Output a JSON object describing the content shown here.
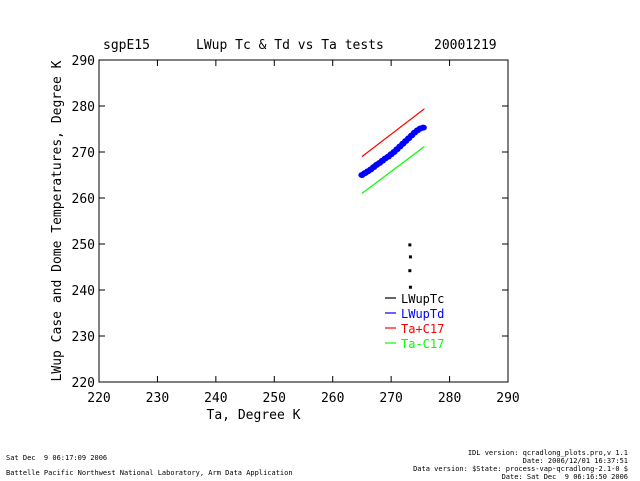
{
  "header": {
    "site": "sgpE15",
    "title": "LWup Tc & Td vs Ta tests",
    "date": "20001219"
  },
  "footer": {
    "left_line1": "Sat Dec  9 06:17:09 2006",
    "left_line2": "Battelle Pacific Northwest National Laboratory, Arm Data Application",
    "right_line1": "IDL version: qcradlong_plots.pro,v 1.1",
    "right_line2": "Date: 2006/12/01 16:37:51",
    "right_line3": "Data version: $State: process-vap-qcradlong-2.1-0 $",
    "right_line4": "Date: Sat Dec  9 06:16:50 2006"
  },
  "chart_data": {
    "type": "scatter",
    "title": "LWup Tc & Td vs Ta tests",
    "xlabel": "Ta, Degree K",
    "ylabel": "LWup Case and Dome Temperatures, Degree K",
    "xlim": [
      220,
      290
    ],
    "ylim": [
      220,
      290
    ],
    "xticks": [
      220,
      230,
      240,
      250,
      260,
      270,
      280,
      290
    ],
    "yticks": [
      220,
      230,
      240,
      250,
      260,
      270,
      280,
      290
    ],
    "grid": false,
    "legend_position": "lower-right inside plot",
    "series": [
      {
        "name": "LWupTc",
        "kind": "points",
        "color": "#000000",
        "points": [
          [
            273.2,
            249.8
          ],
          [
            273.3,
            247.2
          ],
          [
            273.2,
            244.2
          ],
          [
            273.3,
            240.6
          ]
        ]
      },
      {
        "name": "LWupTd",
        "kind": "points",
        "color": "#0000ff",
        "points": [
          [
            265.0,
            265.0
          ],
          [
            265.5,
            265.4
          ],
          [
            266.0,
            265.8
          ],
          [
            266.5,
            266.2
          ],
          [
            267.0,
            266.7
          ],
          [
            267.5,
            267.2
          ],
          [
            268.0,
            267.6
          ],
          [
            268.5,
            268.1
          ],
          [
            269.0,
            268.6
          ],
          [
            269.5,
            269.0
          ],
          [
            270.0,
            269.5
          ],
          [
            270.5,
            270.0
          ],
          [
            271.0,
            270.6
          ],
          [
            271.5,
            271.2
          ],
          [
            272.0,
            271.8
          ],
          [
            272.5,
            272.4
          ],
          [
            273.0,
            273.0
          ],
          [
            273.5,
            273.6
          ],
          [
            274.0,
            274.2
          ],
          [
            274.5,
            274.7
          ],
          [
            275.0,
            275.1
          ],
          [
            275.5,
            275.3
          ]
        ]
      },
      {
        "name": "Ta+C17",
        "kind": "line",
        "color": "#ff0000",
        "points": [
          [
            265.0,
            269.0
          ],
          [
            275.7,
            279.4
          ]
        ]
      },
      {
        "name": "Ta-C17",
        "kind": "line",
        "color": "#00ff00",
        "points": [
          [
            265.0,
            261.0
          ],
          [
            275.7,
            271.2
          ]
        ]
      }
    ]
  }
}
